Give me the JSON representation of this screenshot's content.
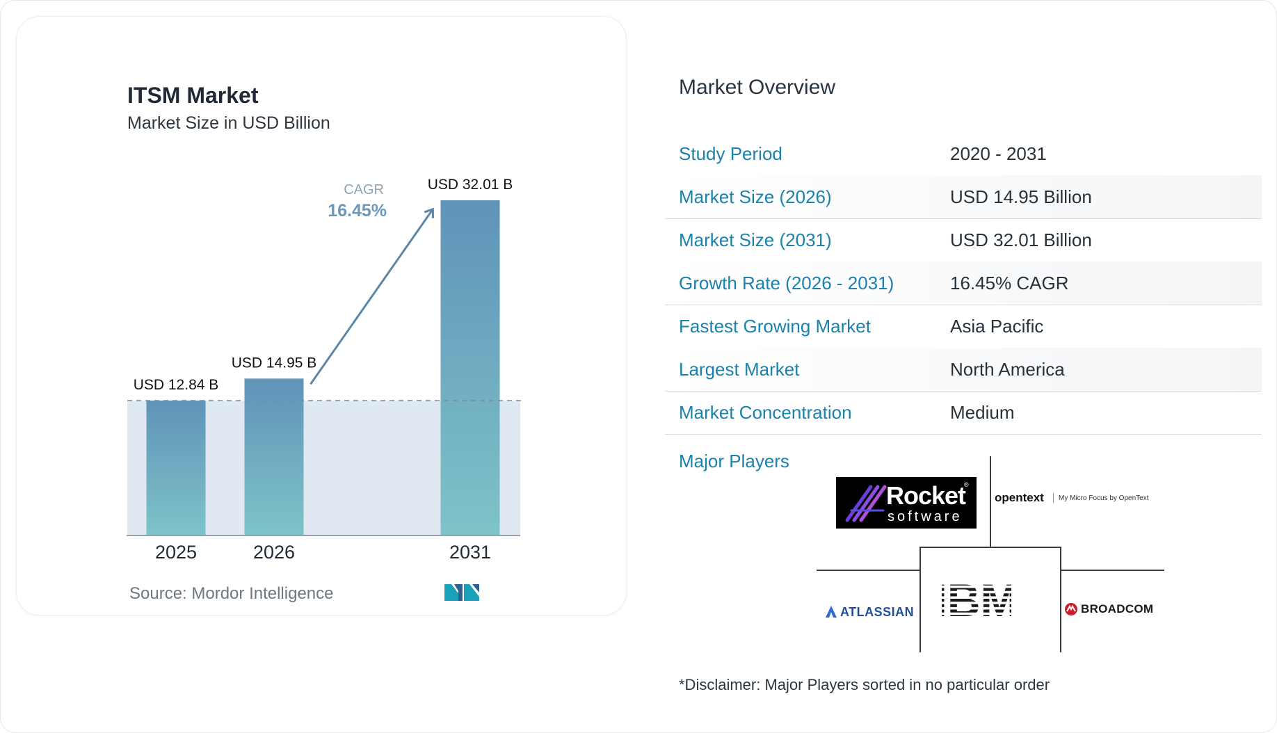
{
  "chart_data": {
    "type": "bar",
    "title": "ITSM Market",
    "subtitle": "Market Size in USD Billion",
    "categories": [
      "2025",
      "2026",
      "2031"
    ],
    "values": [
      12.84,
      14.95,
      32.01
    ],
    "value_labels": [
      "USD 12.84 B",
      "USD 14.95 B",
      "USD 32.01 B"
    ],
    "unit": "USD Billion",
    "ylim": [
      0,
      32.01
    ],
    "grid": false,
    "baseline_reference": 12.84,
    "cagr_label": "CAGR",
    "cagr_value": "16.45%",
    "colors": {
      "bar_top": "#5f93b8",
      "bar_bottom": "#7ec3c8",
      "shade": "#dde7f0",
      "arrow": "#5a87a8",
      "dash": "#6f8fa3"
    }
  },
  "source": "Source:  Mordor Intelligence",
  "logo_icon": "mordor-intelligence-logo",
  "overview": {
    "title": "Market Overview",
    "rows": [
      {
        "label": "Study Period",
        "value": "2020 - 2031"
      },
      {
        "label": "Market Size (2026)",
        "value": "USD 14.95 Billion"
      },
      {
        "label": "Market Size (2031)",
        "value": "USD 32.01 Billion"
      },
      {
        "label": "Growth Rate (2026 - 2031)",
        "value": "16.45% CAGR"
      },
      {
        "label": "Fastest Growing Market",
        "value": "Asia Pacific"
      },
      {
        "label": "Largest Market",
        "value": "North America"
      },
      {
        "label": "Market Concentration",
        "value": "Medium"
      }
    ],
    "major_players_label": "Major Players",
    "players": {
      "rocket_name": "Rocket",
      "rocket_sub": "software",
      "opentext_name": "opentext",
      "opentext_tag": "My Micro Focus by OpenText",
      "atlassian_name": "ATLASSIAN",
      "ibm_name": "IBM",
      "broadcom_name": "BROADCOM"
    },
    "disclaimer": "*Disclaimer: Major Players sorted in no particular order"
  },
  "colors": {
    "label_blue": "#1a82ad",
    "text_dark": "#27313b"
  }
}
